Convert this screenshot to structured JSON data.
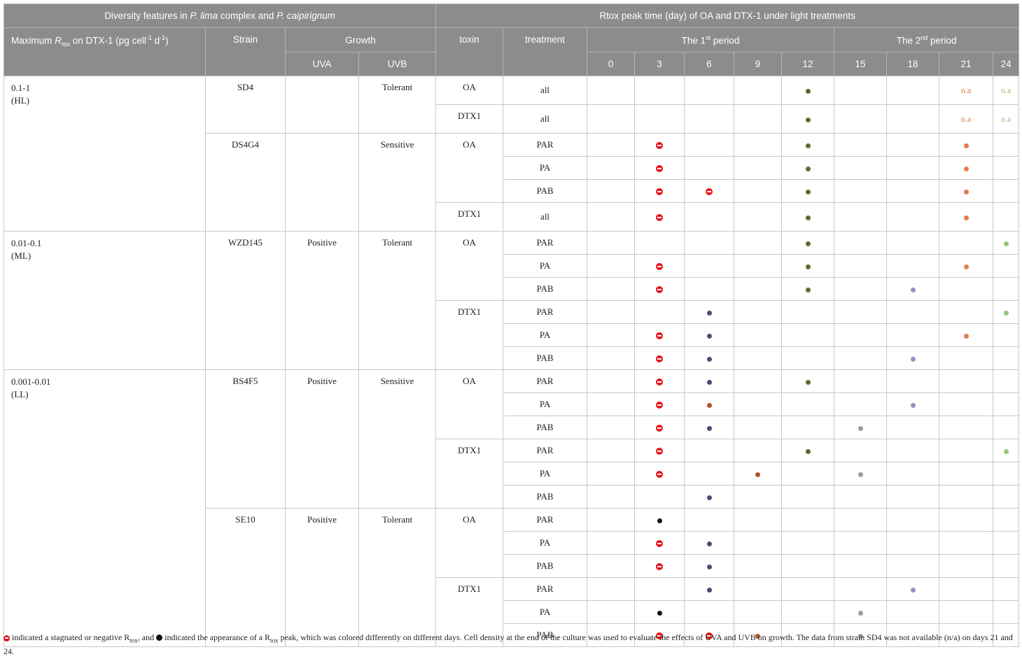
{
  "header": {
    "left_group": "Diversity features in P. lima complex and P. caipirignum",
    "left_group_parts": [
      "Diversity features in ",
      "P. lima",
      " complex and ",
      "P. caipirignum"
    ],
    "right_group": "Rtox peak time (day) of OA and DTX-1 under light treatments",
    "max_rtox_parts": [
      "Maximum ",
      "R",
      "tox",
      " on DTX-1 (pg cell",
      "-1",
      " d",
      "-1",
      ")"
    ],
    "strain": "Strain",
    "growth": "Growth",
    "uva": "UVA",
    "uvb": "UVB",
    "toxin": "toxin",
    "treatment": "treatment",
    "period1_parts": [
      "The 1",
      "st",
      " period"
    ],
    "period2_parts": [
      "The 2",
      "nd",
      " period"
    ],
    "days": [
      "0",
      "3",
      "6",
      "9",
      "12",
      "15",
      "18",
      "21",
      "24"
    ]
  },
  "colors": {
    "neg": "#e8141a",
    "d3": "#111111",
    "d6": "#4a4a7c",
    "d6alt": "#b0532a",
    "d9": "#b0532a",
    "d12": "#5a6e2c",
    "d15": "#a39a96",
    "d18": "#8c94c2",
    "d21": "#e17c4c",
    "d24": "#99c47a",
    "na21": "#e17c4c",
    "na24": "#a5b86a"
  },
  "groups": [
    {
      "range": "0.1-1",
      "label": "(HL)",
      "strains": [
        {
          "name": "SD4",
          "uva": "",
          "uvb": "Tolerant",
          "toxins": [
            {
              "toxin": "OA",
              "rows": [
                {
                  "treatment": "all",
                  "cells": [
                    "",
                    "",
                    "",
                    "",
                    "d12",
                    "",
                    "",
                    "na21",
                    "na24"
                  ]
                }
              ]
            },
            {
              "toxin": "DTX1",
              "rows": [
                {
                  "treatment": "all",
                  "cells": [
                    "",
                    "",
                    "",
                    "",
                    "d12",
                    "",
                    "",
                    "na21",
                    "na24"
                  ]
                }
              ]
            }
          ]
        },
        {
          "name": "DS4G4",
          "uva": "",
          "uvb": "Sensitive",
          "toxins": [
            {
              "toxin": "OA",
              "rows": [
                {
                  "treatment": "PAR",
                  "cells": [
                    "",
                    "neg",
                    "",
                    "",
                    "d12",
                    "",
                    "",
                    "d21",
                    ""
                  ]
                },
                {
                  "treatment": "PA",
                  "cells": [
                    "",
                    "neg",
                    "",
                    "",
                    "d12",
                    "",
                    "",
                    "d21",
                    ""
                  ]
                },
                {
                  "treatment": "PAB",
                  "cells": [
                    "",
                    "neg",
                    "neg",
                    "",
                    "d12",
                    "",
                    "",
                    "d21",
                    ""
                  ]
                }
              ]
            },
            {
              "toxin": "DTX1",
              "rows": [
                {
                  "treatment": "all",
                  "cells": [
                    "",
                    "neg",
                    "",
                    "",
                    "d12",
                    "",
                    "",
                    "d21",
                    ""
                  ]
                }
              ]
            }
          ]
        }
      ]
    },
    {
      "range": "0.01-0.1",
      "label": "(ML)",
      "strains": [
        {
          "name": "WZD145",
          "uva": "Positive",
          "uvb": "Tolerant",
          "toxins": [
            {
              "toxin": "OA",
              "rows": [
                {
                  "treatment": "PAR",
                  "cells": [
                    "",
                    "",
                    "",
                    "",
                    "d12",
                    "",
                    "",
                    "",
                    "d24"
                  ]
                },
                {
                  "treatment": "PA",
                  "cells": [
                    "",
                    "neg",
                    "",
                    "",
                    "d12",
                    "",
                    "",
                    "d21",
                    ""
                  ]
                },
                {
                  "treatment": "PAB",
                  "cells": [
                    "",
                    "neg",
                    "",
                    "",
                    "d12",
                    "",
                    "d18",
                    "",
                    ""
                  ]
                }
              ]
            },
            {
              "toxin": "DTX1",
              "rows": [
                {
                  "treatment": "PAR",
                  "cells": [
                    "",
                    "",
                    "d6",
                    "",
                    "",
                    "",
                    "",
                    "",
                    "d24"
                  ]
                },
                {
                  "treatment": "PA",
                  "cells": [
                    "",
                    "neg",
                    "d6",
                    "",
                    "",
                    "",
                    "",
                    "d21",
                    ""
                  ]
                },
                {
                  "treatment": "PAB",
                  "cells": [
                    "",
                    "neg",
                    "d6",
                    "",
                    "",
                    "",
                    "d18",
                    "",
                    ""
                  ]
                }
              ]
            }
          ]
        }
      ]
    },
    {
      "range": "0.001-0.01",
      "label": "(LL)",
      "strains": [
        {
          "name": "BS4F5",
          "uva": "Positive",
          "uvb": "Sensitive",
          "toxins": [
            {
              "toxin": "OA",
              "rows": [
                {
                  "treatment": "PAR",
                  "cells": [
                    "",
                    "neg",
                    "d6",
                    "",
                    "d12",
                    "",
                    "",
                    "",
                    ""
                  ]
                },
                {
                  "treatment": "PA",
                  "cells": [
                    "",
                    "neg",
                    "d6alt",
                    "",
                    "",
                    "",
                    "d18",
                    "",
                    ""
                  ]
                },
                {
                  "treatment": "PAB",
                  "cells": [
                    "",
                    "neg",
                    "d6",
                    "",
                    "",
                    "d15",
                    "",
                    "",
                    ""
                  ]
                }
              ]
            },
            {
              "toxin": "DTX1",
              "rows": [
                {
                  "treatment": "PAR",
                  "cells": [
                    "",
                    "neg",
                    "",
                    "",
                    "d12",
                    "",
                    "",
                    "",
                    "d24"
                  ]
                },
                {
                  "treatment": "PA",
                  "cells": [
                    "",
                    "neg",
                    "",
                    "d9",
                    "",
                    "d15",
                    "",
                    "",
                    ""
                  ]
                },
                {
                  "treatment": "PAB",
                  "cells": [
                    "",
                    "",
                    "d6",
                    "",
                    "",
                    "",
                    "",
                    "",
                    ""
                  ]
                }
              ]
            }
          ]
        },
        {
          "name": "SE10",
          "uva": "Positive",
          "uvb": "Tolerant",
          "toxins": [
            {
              "toxin": "OA",
              "rows": [
                {
                  "treatment": "PAR",
                  "cells": [
                    "",
                    "d3",
                    "",
                    "",
                    "",
                    "",
                    "",
                    "",
                    ""
                  ]
                },
                {
                  "treatment": "PA",
                  "cells": [
                    "",
                    "neg",
                    "d6",
                    "",
                    "",
                    "",
                    "",
                    "",
                    ""
                  ]
                },
                {
                  "treatment": "PAB",
                  "cells": [
                    "",
                    "neg",
                    "d6",
                    "",
                    "",
                    "",
                    "",
                    "",
                    ""
                  ]
                }
              ]
            },
            {
              "toxin": "DTX1",
              "rows": [
                {
                  "treatment": "PAR",
                  "cells": [
                    "",
                    "",
                    "d6",
                    "",
                    "",
                    "",
                    "d18",
                    "",
                    ""
                  ]
                },
                {
                  "treatment": "PA",
                  "cells": [
                    "",
                    "d3",
                    "",
                    "",
                    "",
                    "d15",
                    "",
                    "",
                    ""
                  ]
                },
                {
                  "treatment": "PAB",
                  "cells": [
                    "",
                    "neg",
                    "neg",
                    "d9",
                    "",
                    "d15",
                    "",
                    "",
                    ""
                  ]
                }
              ]
            }
          ]
        }
      ]
    }
  ],
  "na_text": "n.a",
  "footnote": {
    "part1": " indicated a stagnated or negative R",
    "sub1": "tox",
    "part2": ", and ",
    "part3": " indicated the appearance of a R",
    "sub2": "tox",
    "part4": " peak, which was colored differently on different days. Cell density at the end of the culture was used to evaluate the effects of UVA and UVB on growth. The data from strain SD4 was not available (n/a) on days 21 and 24."
  }
}
